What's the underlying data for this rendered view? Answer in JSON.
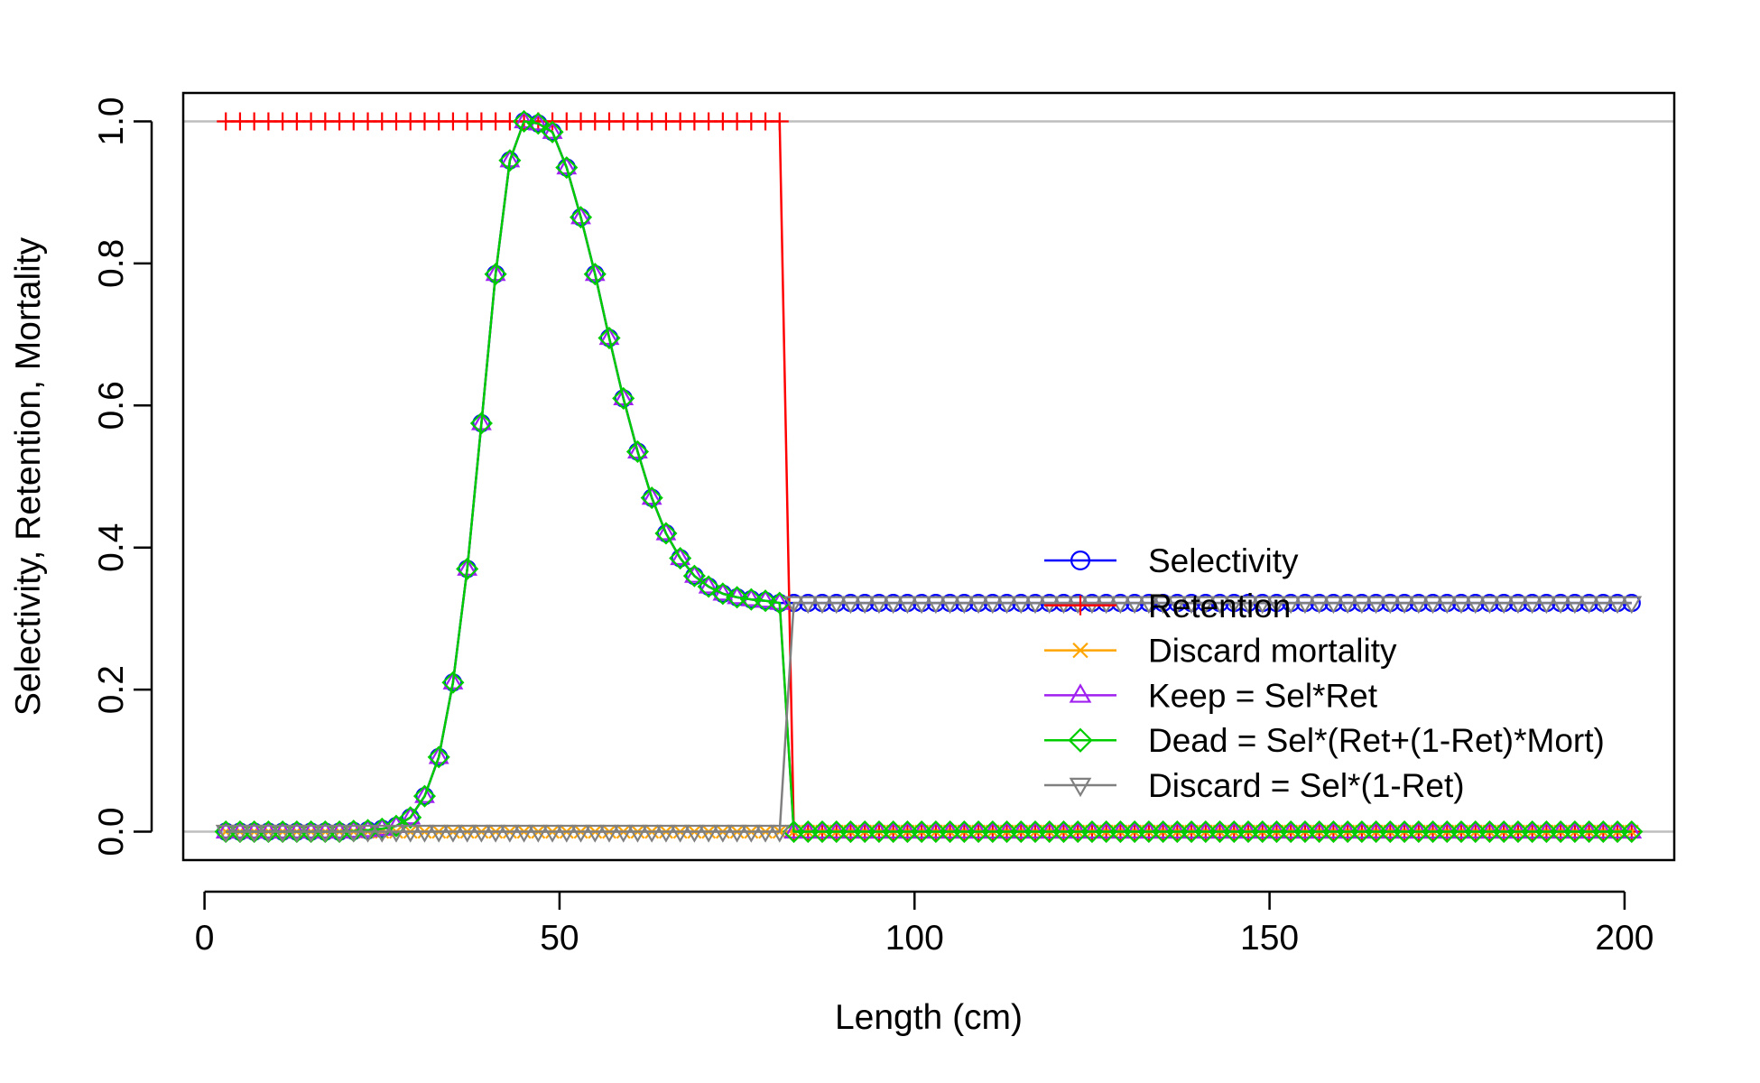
{
  "chart_data": {
    "type": "line",
    "title": "",
    "xlabel": "Length (cm)",
    "ylabel": "Selectivity, Retention, Mortality",
    "xlim": [
      -3,
      207
    ],
    "ylim": [
      -0.04,
      1.04
    ],
    "xticks": [
      0,
      50,
      100,
      150,
      200
    ],
    "yticks": [
      0.0,
      0.2,
      0.4,
      0.6,
      0.8,
      1.0
    ],
    "xtick_labels": [
      "0",
      "50",
      "100",
      "150",
      "200"
    ],
    "ytick_labels": [
      "0.0",
      "0.2",
      "0.4",
      "0.6",
      "0.8",
      "1.0"
    ],
    "reference_lines": [
      0,
      1
    ],
    "legend_position": "right",
    "length_bins": {
      "start": 3,
      "stop": 201,
      "step": 2
    },
    "selectivity_peak_part": {
      "x": [
        3,
        5,
        7,
        9,
        11,
        13,
        15,
        17,
        19,
        21,
        23,
        25,
        27,
        29,
        31,
        33,
        35,
        37,
        39,
        41,
        43,
        45,
        47,
        49,
        51,
        53,
        55,
        57,
        59,
        61,
        63,
        65,
        67,
        69,
        71,
        73,
        75,
        77,
        79,
        81
      ],
      "values": [
        0,
        0,
        0,
        0,
        0,
        0,
        0,
        0,
        0,
        0.001,
        0.002,
        0.004,
        0.008,
        0.02,
        0.05,
        0.105,
        0.21,
        0.37,
        0.575,
        0.785,
        0.945,
        1.0,
        0.997,
        0.985,
        0.935,
        0.865,
        0.785,
        0.695,
        0.61,
        0.535,
        0.47,
        0.42,
        0.385,
        0.36,
        0.345,
        0.335,
        0.33,
        0.327,
        0.325,
        0.322
      ]
    },
    "selectivity_plateau": 0.322,
    "retention": {
      "knife_edge_at": 82,
      "below": 1.0,
      "above": 0.0
    },
    "discard_mortality_value": 0.0,
    "series": [
      {
        "name": "Selectivity",
        "key": "sel",
        "color": "#0000FF",
        "marker": "circle"
      },
      {
        "name": "Retention",
        "key": "ret",
        "color": "#FF0000",
        "marker": "plus"
      },
      {
        "name": "Discard mortality",
        "key": "mort",
        "color": "#FFA500",
        "marker": "cross"
      },
      {
        "name": "Keep = Sel*Ret",
        "key": "keep",
        "color": "#A020F0",
        "marker": "triangle-up"
      },
      {
        "name": "Dead = Sel*(Ret+(1-Ret)*Mort)",
        "key": "dead",
        "color": "#00CD00",
        "marker": "diamond"
      },
      {
        "name": "Discard = Sel*(1-Ret)",
        "key": "disc",
        "color": "#808080",
        "marker": "triangle-down"
      }
    ]
  }
}
